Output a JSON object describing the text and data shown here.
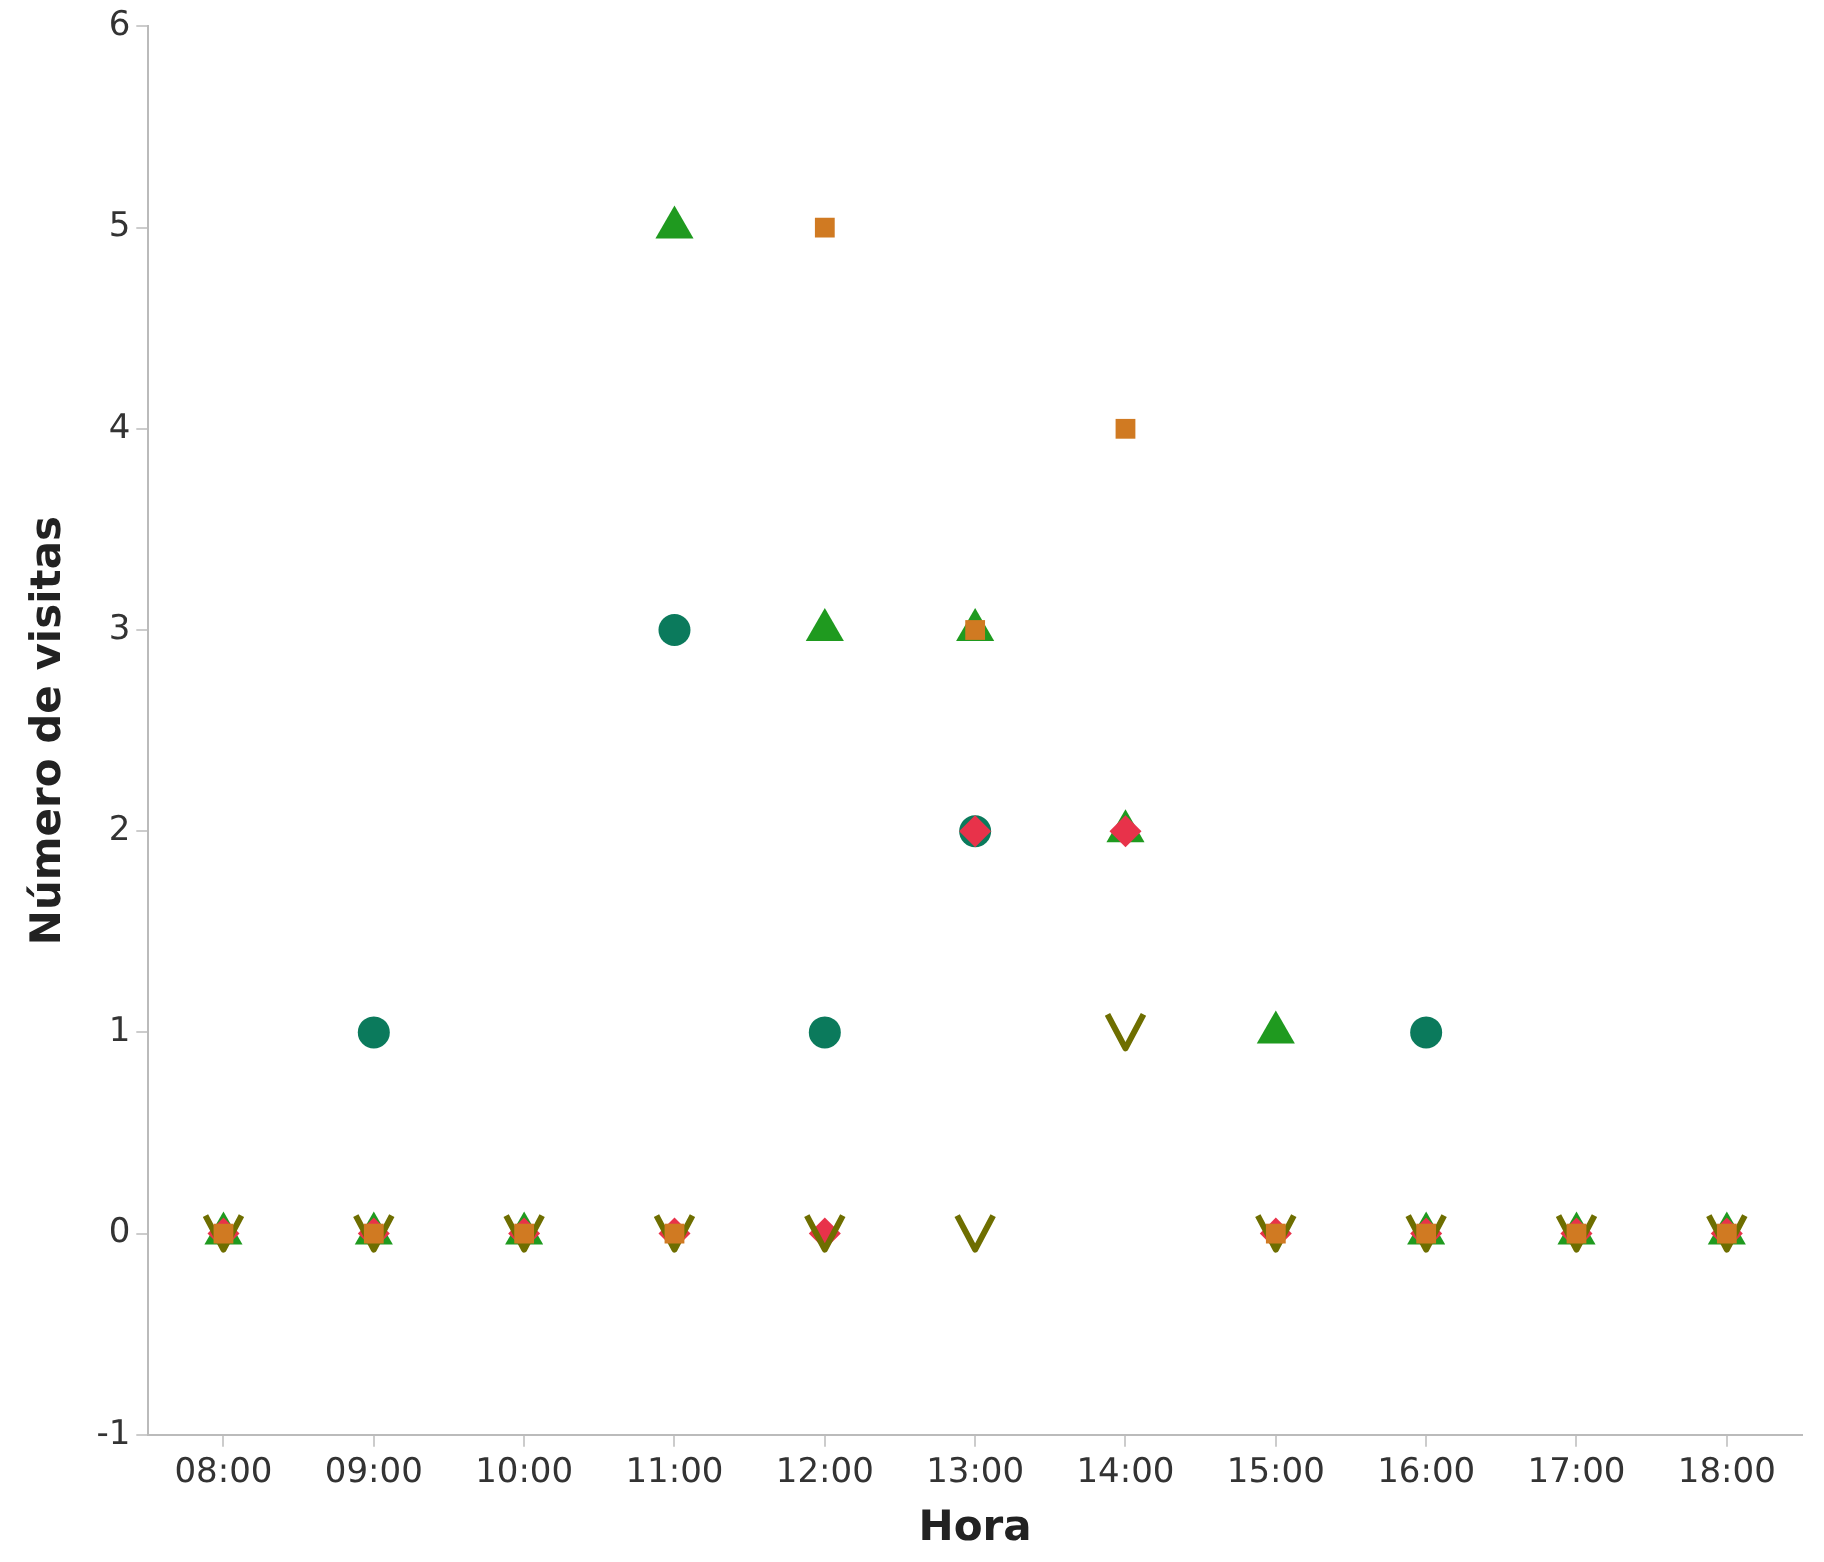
{
  "chart_data": {
    "type": "scatter",
    "xlabel": "Hora",
    "ylabel": "Número de visitas",
    "categories": [
      "08:00",
      "09:00",
      "10:00",
      "11:00",
      "12:00",
      "13:00",
      "14:00",
      "15:00",
      "16:00",
      "17:00",
      "18:00"
    ],
    "ylim": [
      -1,
      6
    ],
    "yticks": [
      -1,
      0,
      1,
      2,
      3,
      4,
      5,
      6
    ],
    "grid": false,
    "legend": false,
    "series": [
      {
        "color": "#0b7a5c",
        "marker": "circle",
        "values": [
          null,
          1,
          null,
          3,
          1,
          2,
          null,
          null,
          1,
          null,
          null
        ]
      },
      {
        "color": "#1f9a1f",
        "marker": "triangle",
        "values": [
          0,
          0,
          0,
          5,
          3,
          3,
          2,
          1,
          0,
          0,
          0
        ]
      },
      {
        "color": "#e8324a",
        "marker": "diamond",
        "values": [
          0,
          0,
          0,
          0,
          0,
          2,
          2,
          0,
          0,
          0,
          0
        ]
      },
      {
        "color": "#6e6e00",
        "marker": "cross",
        "values": [
          0,
          0,
          0,
          0,
          0,
          0,
          1,
          0,
          0,
          0,
          0
        ]
      },
      {
        "color": "#d07a22",
        "marker": "square",
        "values": [
          0,
          0,
          0,
          0,
          5,
          3,
          4,
          0,
          0,
          0,
          0
        ]
      }
    ]
  }
}
